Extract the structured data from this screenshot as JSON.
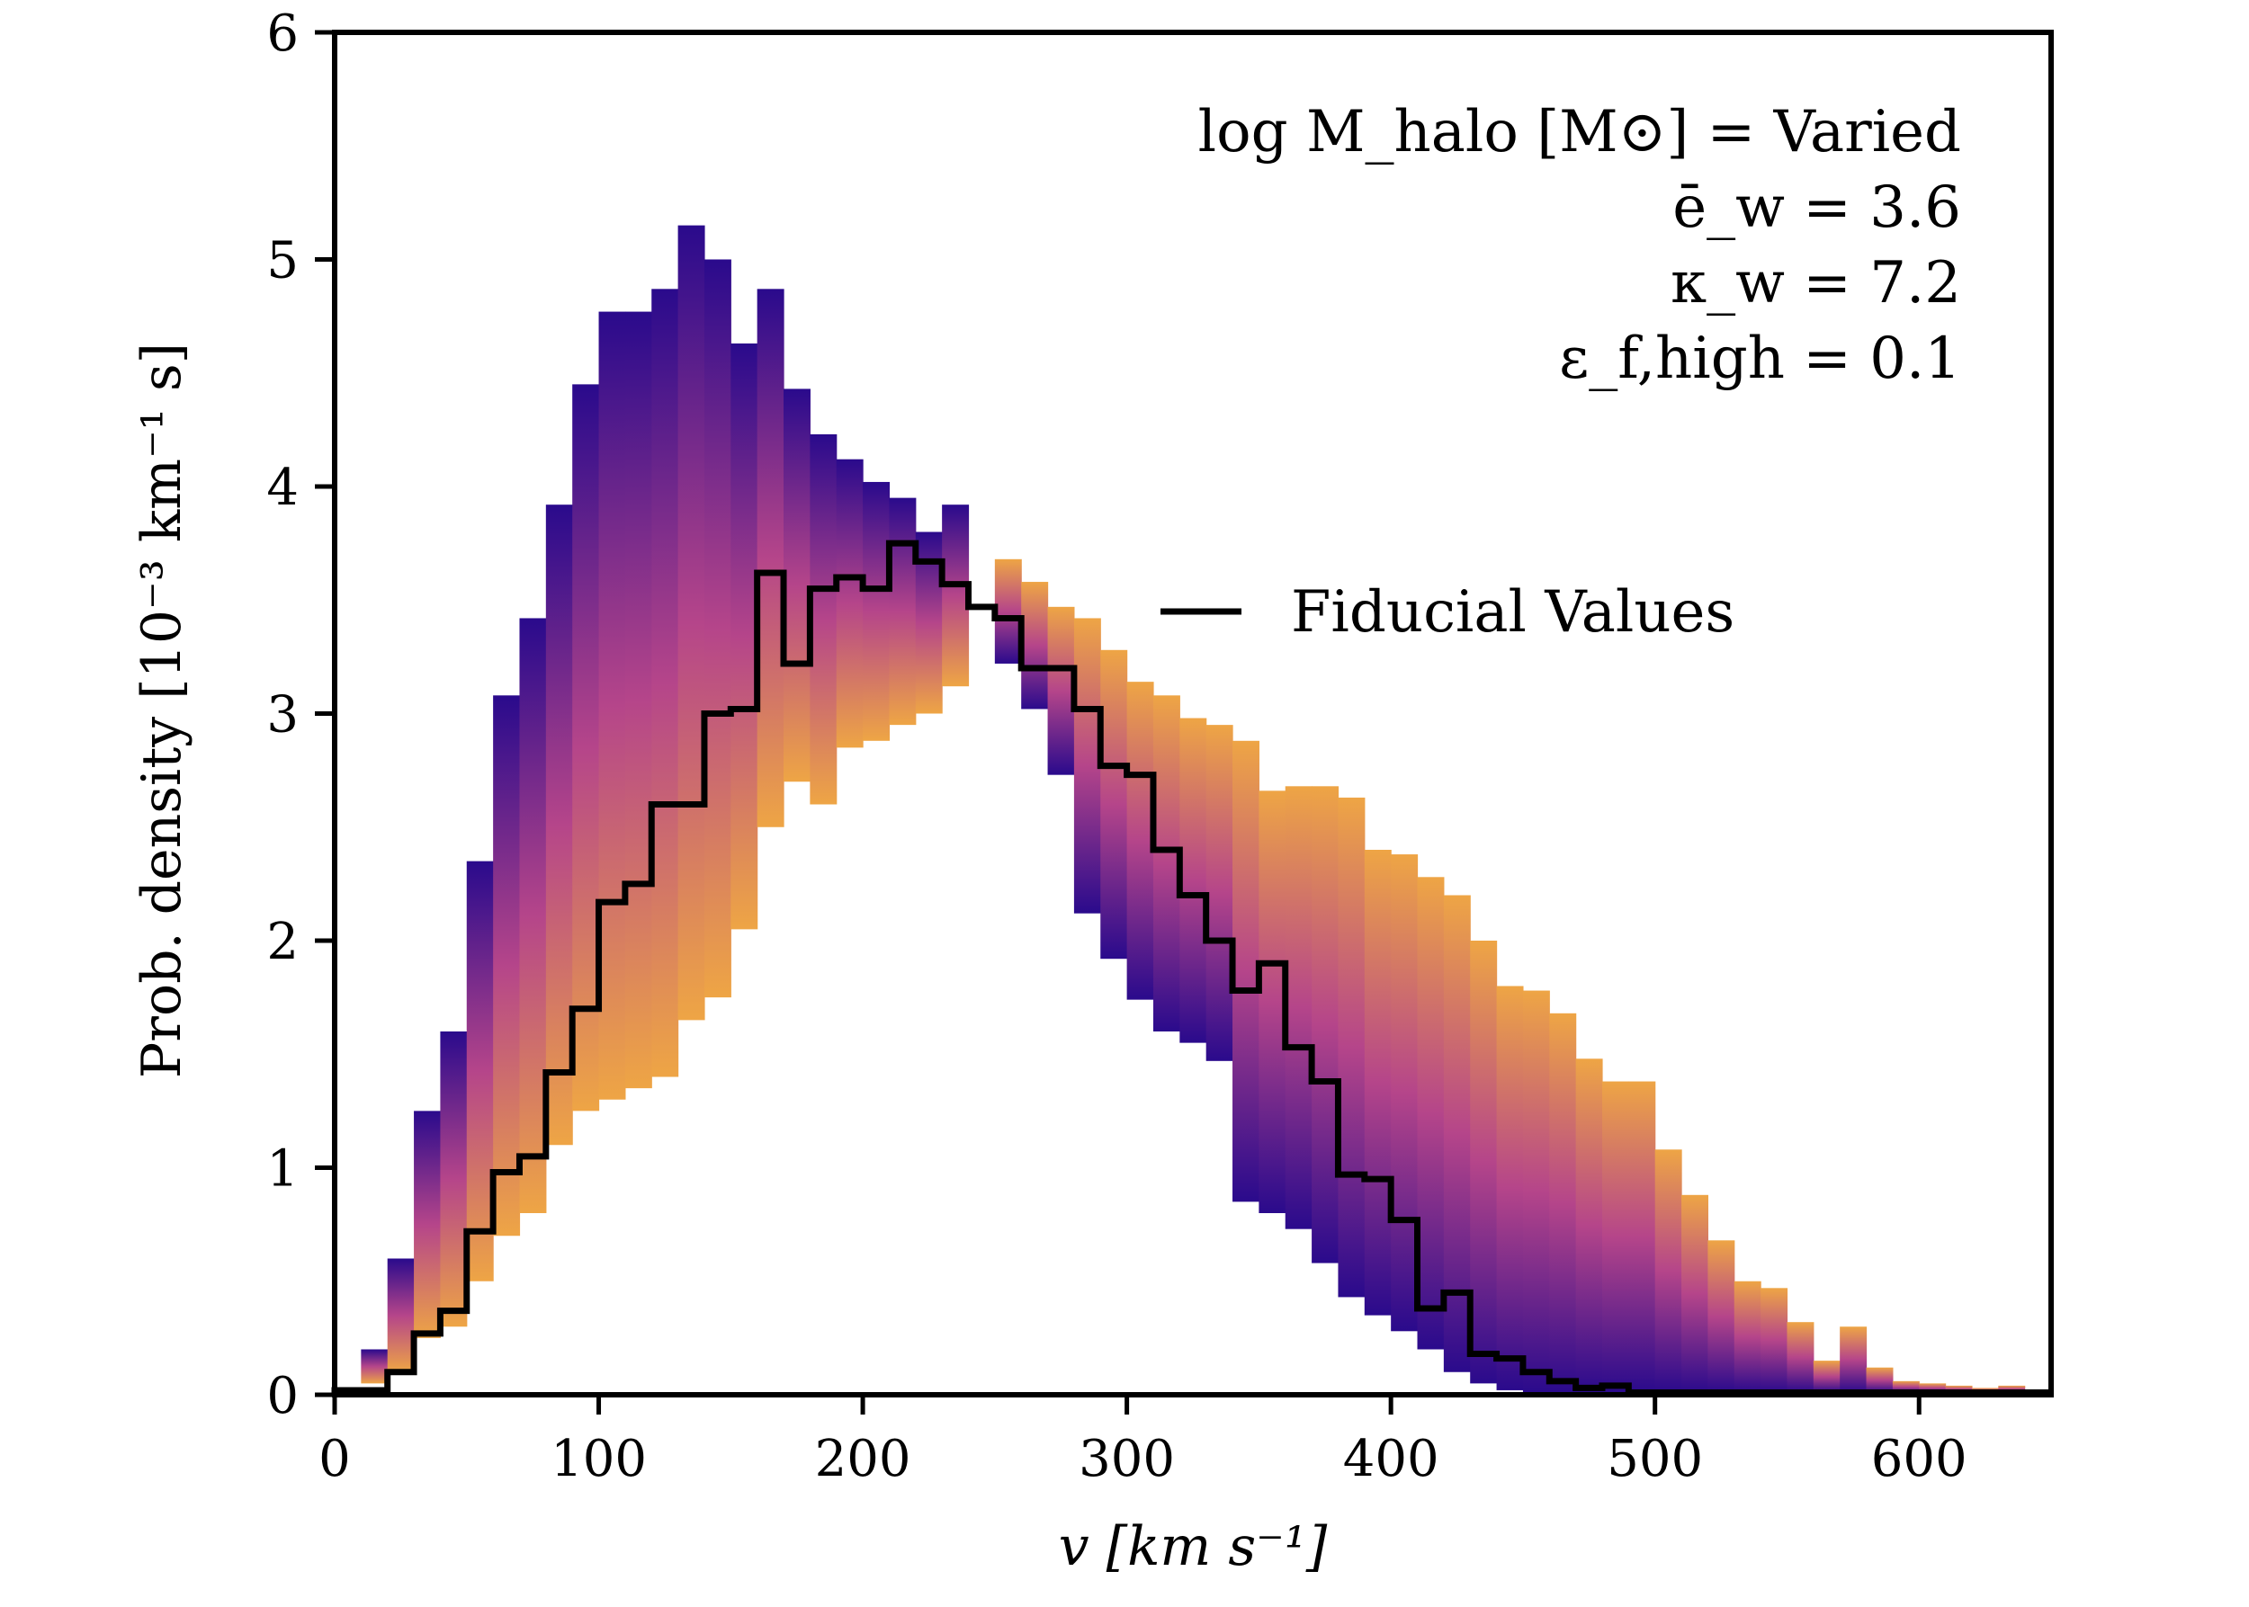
{
  "chart_data": {
    "type": "histogram",
    "xlabel": "v [km s⁻¹]",
    "ylabel": "Prob. density [10⁻³ km⁻¹ s]",
    "xlim": [
      0,
      650
    ],
    "ylim": [
      0,
      6
    ],
    "x_ticks": [
      0,
      100,
      200,
      300,
      400,
      500,
      600
    ],
    "y_ticks": [
      0,
      1,
      2,
      3,
      4,
      5,
      6
    ],
    "grid": false,
    "annotations": [
      "log M_halo [M⊙] = Varied",
      "ē_w = 3.6",
      "κ_w = 7.2",
      "ε_f,high = 0.1"
    ],
    "legend": {
      "placement": "center-right",
      "entries": [
        {
          "label": "Fiducial Values",
          "color": "#000000"
        }
      ]
    },
    "colormap": {
      "name": "plasma",
      "low": "#2a0a8c",
      "mid": "#b5458a",
      "high": "#eea545"
    },
    "left_band": {
      "bin_edges": [
        0,
        10,
        20,
        30,
        40,
        50,
        60,
        70,
        80,
        90,
        100,
        110,
        120,
        130,
        140,
        150,
        160,
        170,
        180,
        190,
        200,
        210,
        220,
        230,
        240
      ],
      "upper": [
        0.02,
        0.2,
        0.6,
        1.25,
        1.6,
        2.35,
        3.08,
        3.42,
        3.92,
        4.45,
        4.77,
        4.77,
        4.87,
        5.15,
        5.0,
        4.63,
        4.87,
        4.43,
        4.23,
        4.12,
        4.02,
        3.95,
        3.8,
        3.92
      ],
      "lower": [
        0.02,
        0.05,
        0.1,
        0.25,
        0.3,
        0.5,
        0.7,
        0.8,
        1.1,
        1.25,
        1.3,
        1.35,
        1.4,
        1.65,
        1.75,
        2.05,
        2.5,
        2.7,
        2.6,
        2.85,
        2.88,
        2.95,
        3.0,
        3.12
      ]
    },
    "right_band": {
      "bin_edges": [
        250,
        260,
        270,
        280,
        290,
        300,
        310,
        320,
        330,
        340,
        350,
        360,
        370,
        380,
        390,
        400,
        410,
        420,
        430,
        440,
        450,
        460,
        470,
        480,
        490,
        500,
        510,
        520,
        530,
        540,
        550,
        560,
        570,
        580,
        590,
        600,
        610,
        620,
        630,
        640,
        650
      ],
      "upper": [
        3.68,
        3.58,
        3.47,
        3.42,
        3.28,
        3.14,
        3.08,
        2.98,
        2.95,
        2.88,
        2.66,
        2.68,
        2.68,
        2.63,
        2.4,
        2.38,
        2.28,
        2.2,
        2.0,
        1.8,
        1.78,
        1.68,
        1.48,
        1.38,
        1.38,
        1.08,
        0.88,
        0.68,
        0.5,
        0.47,
        0.32,
        0.15,
        0.3,
        0.12,
        0.06,
        0.05,
        0.04,
        0.03,
        0.04,
        0.02
      ],
      "lower": [
        3.22,
        3.02,
        2.73,
        2.12,
        1.92,
        1.74,
        1.6,
        1.55,
        1.47,
        0.85,
        0.8,
        0.73,
        0.58,
        0.43,
        0.35,
        0.28,
        0.2,
        0.1,
        0.05,
        0.02,
        0.01,
        0.01,
        0.01,
        0.01,
        0.01,
        0.01,
        0.01,
        0.01,
        0.01,
        0.01,
        0.01,
        0.01,
        0.01,
        0.01,
        0.01,
        0.01,
        0.01,
        0.01,
        0.01,
        0.01
      ]
    },
    "series": [
      {
        "name": "Fiducial Values",
        "bin_edges": [
          0,
          10,
          20,
          30,
          40,
          50,
          60,
          70,
          80,
          90,
          100,
          110,
          120,
          130,
          140,
          150,
          160,
          170,
          180,
          190,
          200,
          210,
          220,
          230,
          240,
          250,
          260,
          270,
          280,
          290,
          300,
          310,
          320,
          330,
          340,
          350,
          360,
          370,
          380,
          390,
          400,
          410,
          420,
          430,
          440,
          450,
          460,
          470,
          480,
          490,
          500,
          510,
          520,
          530,
          540,
          550,
          560,
          570,
          580,
          590,
          600,
          610,
          620,
          630,
          640,
          650
        ],
        "values": [
          0.02,
          0.02,
          0.1,
          0.27,
          0.37,
          0.72,
          0.98,
          1.05,
          1.42,
          1.7,
          2.17,
          2.25,
          2.6,
          2.6,
          3.0,
          3.02,
          3.62,
          3.22,
          3.55,
          3.6,
          3.55,
          3.75,
          3.67,
          3.57,
          3.47,
          3.42,
          3.2,
          3.2,
          3.02,
          2.77,
          2.73,
          2.4,
          2.2,
          2.0,
          1.78,
          1.9,
          1.53,
          1.38,
          0.97,
          0.95,
          0.77,
          0.38,
          0.45,
          0.18,
          0.16,
          0.1,
          0.06,
          0.03,
          0.04,
          0.01,
          0.01,
          0.01,
          0.01,
          0.01,
          0.01,
          0.01,
          0.01,
          0.01,
          0.01,
          0.01,
          0.01,
          0.01,
          0.01,
          0.01,
          0.01
        ]
      }
    ]
  }
}
